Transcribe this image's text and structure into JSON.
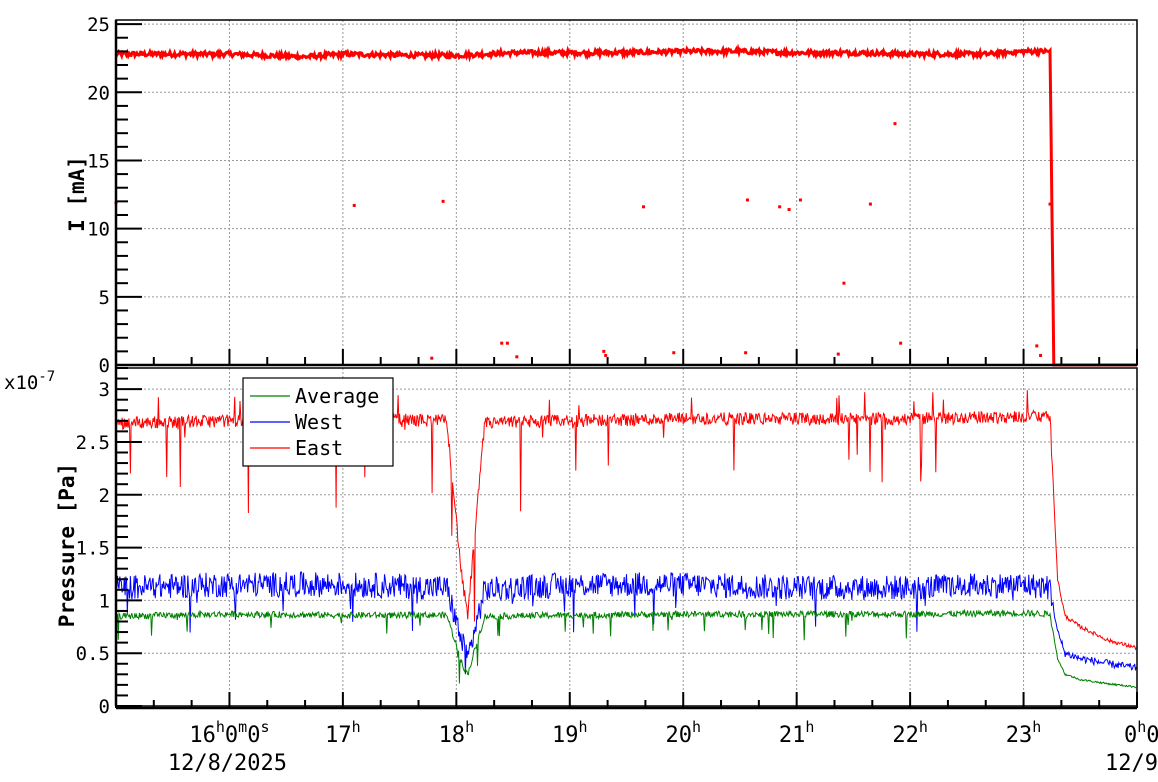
{
  "chart_data": [
    {
      "type": "scatter",
      "panel": "top",
      "ylabel": "I [mA]",
      "ylim": [
        0,
        25.3
      ],
      "xlim": [
        "2025-12-08 15:00",
        "2025-12-09 00:00"
      ],
      "grid": true,
      "yticks": [
        "0",
        "5",
        "10",
        "15",
        "20",
        "25"
      ],
      "color": "#ff0000",
      "series": [
        {
          "x": [
            "2025-12-08 15:00",
            "2025-12-08 16:00",
            "2025-12-08 16:40",
            "2025-12-08 17:00",
            "2025-12-08 17:40",
            "2025-12-08 18:00",
            "2025-12-08 18:30",
            "2025-12-08 19:00",
            "2025-12-08 19:30",
            "2025-12-08 20:00",
            "2025-12-08 20:30",
            "2025-12-08 21:00",
            "2025-12-08 21:30",
            "2025-12-08 22:00",
            "2025-12-08 22:40",
            "2025-12-08 23:00",
            "2025-12-08 23:14",
            "2025-12-08 23:16",
            "2025-12-08 23:30",
            "2025-12-09 00:00"
          ],
          "values": [
            22.8,
            22.8,
            22.6,
            22.8,
            22.7,
            22.7,
            22.9,
            22.9,
            22.9,
            23.0,
            23.0,
            22.9,
            22.9,
            22.8,
            22.8,
            23.0,
            23.0,
            0,
            0,
            0
          ]
        },
        {
          "x": [
            "2025-12-08 15:00",
            "2025-12-08 17:06",
            "2025-12-08 17:53",
            "2025-12-08 17:47",
            "2025-12-08 18:24",
            "2025-12-08 18:27",
            "2025-12-08 18:32",
            "2025-12-08 19:18",
            "2025-12-08 19:19",
            "2025-12-08 19:39",
            "2025-12-08 19:55",
            "2025-12-08 20:34",
            "2025-12-08 20:33",
            "2025-12-08 20:51",
            "2025-12-08 20:56",
            "2025-12-08 21:02",
            "2025-12-08 21:22",
            "2025-12-08 21:25",
            "2025-12-08 21:39",
            "2025-12-08 21:52",
            "2025-12-08 21:55",
            "2025-12-08 23:07",
            "2025-12-08 23:09",
            "2025-12-08 23:14"
          ],
          "values": [
            11.9,
            11.7,
            12.0,
            0.5,
            1.6,
            1.6,
            0.6,
            1.0,
            0.7,
            11.6,
            0.9,
            12.1,
            0.9,
            11.6,
            11.4,
            12.1,
            0.8,
            6.0,
            11.8,
            17.7,
            1.6,
            1.4,
            0.7,
            11.8
          ]
        }
      ]
    },
    {
      "type": "line",
      "panel": "bottom",
      "ylabel": "Pressure [Pa]",
      "yexponent": "x10-7",
      "ylim": [
        0,
        3.2
      ],
      "xlim": [
        "2025-12-08 15:00",
        "2025-12-09 00:00"
      ],
      "grid": true,
      "yticks": [
        "0",
        "0.5",
        "1",
        "1.5",
        "2",
        "2.5",
        "3"
      ],
      "xticks": [
        "16h0m0s",
        "17h",
        "18h",
        "19h",
        "20h",
        "21h",
        "22h",
        "23h",
        "0h0"
      ],
      "xdates": [
        "12/8/2025",
        "12/9/2025"
      ],
      "legend_placement": "top-left",
      "x": [
        "2025-12-08 15:00",
        "2025-12-08 16:00",
        "2025-12-08 17:00",
        "2025-12-08 17:55",
        "2025-12-08 18:03",
        "2025-12-08 18:06",
        "2025-12-08 18:15",
        "2025-12-08 19:00",
        "2025-12-08 20:00",
        "2025-12-08 21:00",
        "2025-12-08 22:00",
        "2025-12-08 23:00",
        "2025-12-08 23:14",
        "2025-12-08 23:18",
        "2025-12-08 23:22",
        "2025-12-08 23:30",
        "2025-12-08 23:45",
        "2025-12-09 00:00"
      ],
      "series": [
        {
          "name": "Average",
          "color": "#008000",
          "values": [
            0.85,
            0.87,
            0.86,
            0.86,
            0.4,
            0.3,
            0.85,
            0.86,
            0.87,
            0.87,
            0.87,
            0.88,
            0.87,
            0.45,
            0.3,
            0.25,
            0.21,
            0.18
          ]
        },
        {
          "name": "West",
          "color": "#0000ff",
          "values": [
            1.12,
            1.15,
            1.15,
            1.12,
            0.6,
            0.45,
            1.1,
            1.15,
            1.15,
            1.12,
            1.12,
            1.15,
            1.12,
            0.7,
            0.5,
            0.45,
            0.4,
            0.36
          ]
        },
        {
          "name": "East",
          "color": "#ff0000",
          "values": [
            2.68,
            2.7,
            2.72,
            2.7,
            1.2,
            0.85,
            2.68,
            2.7,
            2.72,
            2.72,
            2.72,
            2.74,
            2.74,
            1.2,
            0.85,
            0.75,
            0.62,
            0.55
          ]
        }
      ]
    }
  ]
}
